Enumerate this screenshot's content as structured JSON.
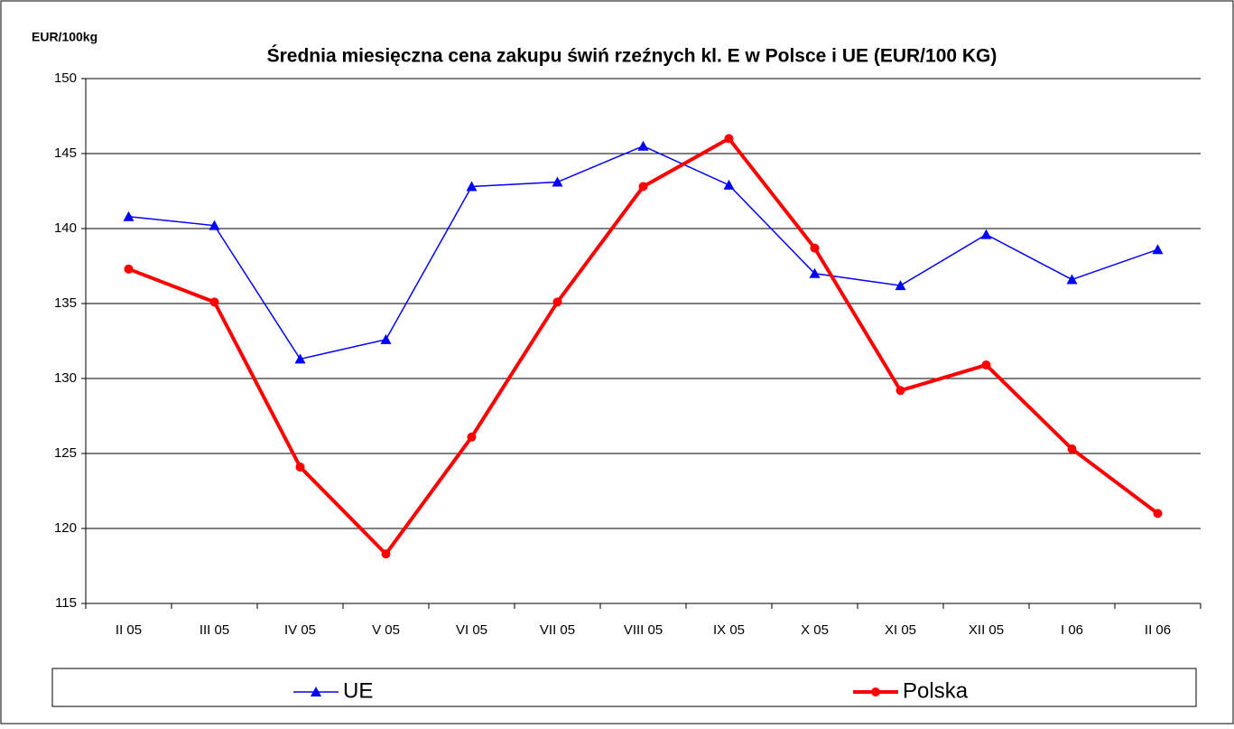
{
  "chart_data": {
    "type": "line",
    "title": "Średnia miesięczna cena zakupu świń rzeźnych kl. E w  Polsce i UE (EUR/100 KG)",
    "ylabel": "EUR/100kg",
    "categories": [
      "II 05",
      "III 05",
      "IV 05",
      "V 05",
      "VI 05",
      "VII 05",
      "VIII 05",
      "IX 05",
      "X 05",
      "XI 05",
      "XII 05",
      "I 06",
      "II 06"
    ],
    "series": [
      {
        "name": "UE",
        "color": "#0000ff",
        "values": [
          140.8,
          140.2,
          131.3,
          132.6,
          142.8,
          143.1,
          145.5,
          142.9,
          137.0,
          136.2,
          139.6,
          136.6,
          138.6
        ]
      },
      {
        "name": "Polska",
        "color": "#ff0000",
        "values": [
          137.3,
          135.1,
          124.1,
          118.3,
          126.1,
          135.1,
          142.8,
          146.0,
          138.7,
          129.2,
          130.9,
          125.3,
          121.0
        ]
      }
    ],
    "ylim": [
      115,
      150
    ],
    "yticks": [
      115,
      120,
      125,
      130,
      135,
      140,
      145,
      150
    ],
    "grid": true,
    "legend": "bottom"
  }
}
